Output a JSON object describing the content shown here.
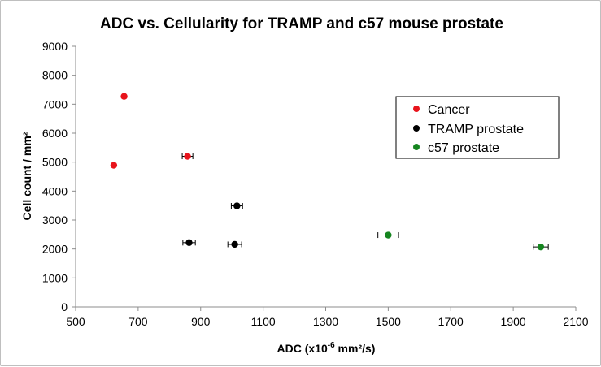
{
  "chart_data": {
    "type": "scatter",
    "title": "ADC vs. Cellularity for TRAMP and c57 mouse prostate",
    "xlabel_parts": [
      "ADC (x10",
      "-6",
      " mm²/s)"
    ],
    "ylabel": "Cell count / mm²",
    "xlim": [
      500,
      2100
    ],
    "ylim": [
      0,
      9000
    ],
    "xticks": [
      500,
      700,
      900,
      1100,
      1300,
      1500,
      1700,
      1900,
      2100
    ],
    "yticks": [
      0,
      1000,
      2000,
      3000,
      4000,
      5000,
      6000,
      7000,
      8000,
      9000
    ],
    "series": [
      {
        "name": "Cancer",
        "color": "#e8141c",
        "points": [
          {
            "x": 655,
            "y": 7270,
            "xerr": 0
          },
          {
            "x": 622,
            "y": 4890,
            "xerr": 0
          },
          {
            "x": 858,
            "y": 5200,
            "xerr": 17
          }
        ]
      },
      {
        "name": "TRAMP prostate",
        "color": "#000000",
        "points": [
          {
            "x": 1016,
            "y": 3490,
            "xerr": 18
          },
          {
            "x": 863,
            "y": 2220,
            "xerr": 20
          },
          {
            "x": 1009,
            "y": 2160,
            "xerr": 22
          }
        ]
      },
      {
        "name": "c57 prostate",
        "color": "#15851f",
        "points": [
          {
            "x": 1500,
            "y": 2480,
            "xerr": 33
          },
          {
            "x": 1988,
            "y": 2070,
            "xerr": 24
          }
        ]
      }
    ],
    "legend_position": "top-right",
    "grid": false
  }
}
